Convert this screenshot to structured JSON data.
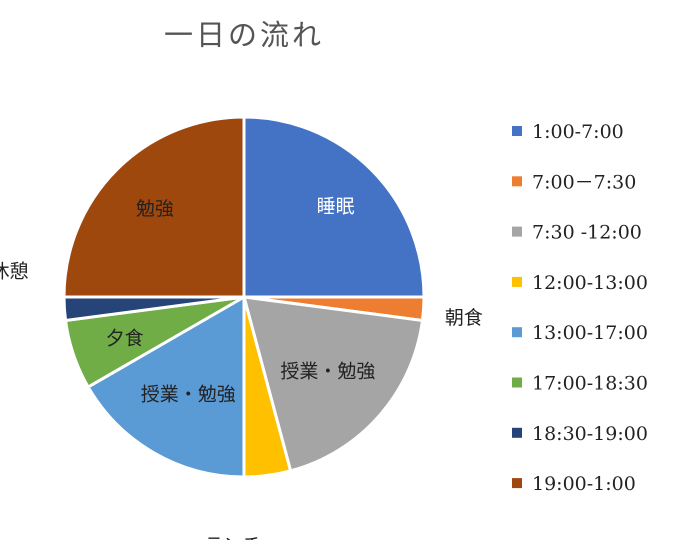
{
  "chart_data": {
    "type": "pie",
    "title": "一日の流れ",
    "start_angle_deg": 0,
    "direction": "clockwise",
    "legend_position": "right",
    "slices": [
      {
        "legend": "1:00-7:00",
        "label": "睡眠",
        "value": 6,
        "color": "#4472C4",
        "label_color": "#ffffff"
      },
      {
        "legend": "7:00－7:30",
        "label": "朝食",
        "value": 0.5,
        "color": "#ED7D31",
        "label_color": "#222222"
      },
      {
        "legend": "7:30 -12:00",
        "label": "授業・勉強",
        "value": 4.5,
        "color": "#A5A5A5",
        "label_color": "#222222"
      },
      {
        "legend": "12:00-13:00",
        "label": "ランチ",
        "value": 1,
        "color": "#FFC000",
        "label_color": "#222222"
      },
      {
        "legend": "13:00-17:00",
        "label": "授業・勉強",
        "value": 4,
        "color": "#5B9BD5",
        "label_color": "#222222"
      },
      {
        "legend": "17:00-18:30",
        "label": "夕食",
        "value": 1.5,
        "color": "#70AD47",
        "label_color": "#222222"
      },
      {
        "legend": "18:30-19:00",
        "label": "休憩",
        "value": 0.5,
        "color": "#264478",
        "label_color": "#222222"
      },
      {
        "legend": "19:00-1:00",
        "label": "勉強",
        "value": 6,
        "color": "#9E480E",
        "label_color": "#222222"
      }
    ]
  }
}
